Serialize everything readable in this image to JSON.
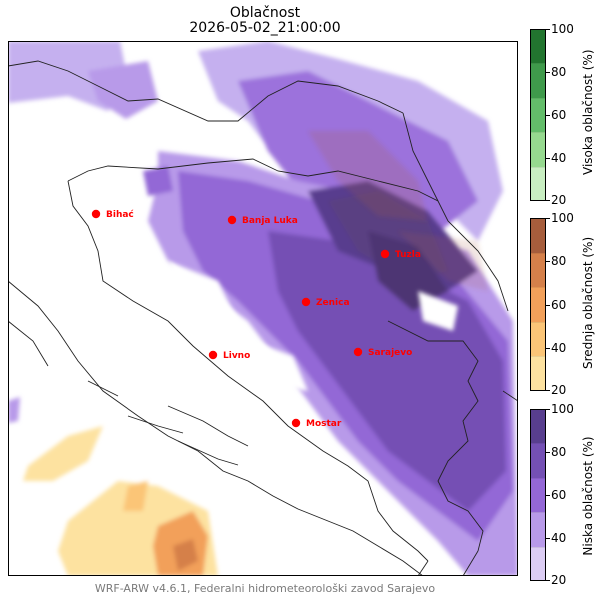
{
  "title": "Oblačnost",
  "timestamp": "2026-05-02_21:00:00",
  "credit": "WRF-ARW v4.6.1, Federalni hidrometeorološki zavod Sarajevo",
  "cities": [
    {
      "name": "Bihać"
    },
    {
      "name": "Banja Luka"
    },
    {
      "name": "Tuzla"
    },
    {
      "name": "Zenica"
    },
    {
      "name": "Livno"
    },
    {
      "name": "Sarajevo"
    },
    {
      "name": "Mostar"
    }
  ],
  "colorbars": [
    {
      "label": "Visoka oblačnost (%)",
      "ticks": [
        "100",
        "80",
        "60",
        "40",
        "20"
      ],
      "colors": [
        "#c9efc2",
        "#96d98f",
        "#63bd6a",
        "#3f9a4b",
        "#22752f"
      ]
    },
    {
      "label": "Srednja oblačnost (%)",
      "ticks": [
        "100",
        "80",
        "60",
        "40",
        "20"
      ],
      "colors": [
        "#fde2a0",
        "#fbc577",
        "#f2a05a",
        "#d5804a",
        "#a65d3c"
      ]
    },
    {
      "label": "Niska oblačnost (%)",
      "ticks": [
        "100",
        "80",
        "60",
        "40",
        "20"
      ],
      "colors": [
        "#dccdf4",
        "#b89ae9",
        "#9367d6",
        "#7450b4",
        "#583e8e"
      ]
    }
  ]
}
